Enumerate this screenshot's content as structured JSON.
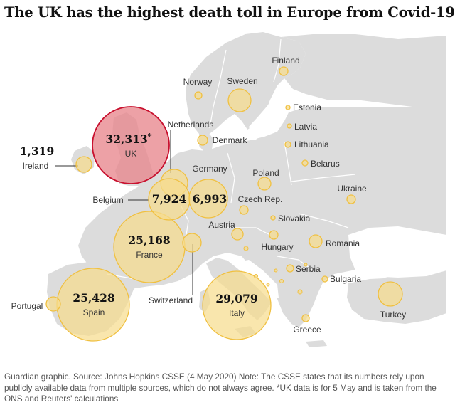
{
  "title": "The UK has the highest death toll in Europe from Covid-19",
  "footnote": "Guardian graphic. Source: Johns Hopkins CSSE (4 May 2020) Note: The CSSE states that its numbers rely upon publicly available data from multiple sources, which do not always agree. *UK data is for 5 May and is taken from the ONS and Reuters' calculations",
  "colors": {
    "land": "#dcdcdc",
    "bubble_fill": "#f6dd8e",
    "bubble_stroke": "#f0c040",
    "uk_fill": "#e8868d",
    "uk_stroke": "#c8102e"
  },
  "uk_asterisk": "*",
  "countries": [
    {
      "key": "uk",
      "name": "UK",
      "value": "32,313"
    },
    {
      "key": "ireland",
      "name": "Ireland",
      "value": "1,319"
    },
    {
      "key": "belgium",
      "name": "Belgium",
      "value": "7,924"
    },
    {
      "key": "germany",
      "name": "Germany",
      "value": "6,993"
    },
    {
      "key": "france",
      "name": "France",
      "value": "25,168"
    },
    {
      "key": "spain",
      "name": "Spain",
      "value": "25,428"
    },
    {
      "key": "italy",
      "name": "Italy",
      "value": "29,079"
    },
    {
      "key": "netherlands",
      "name": "Netherlands"
    },
    {
      "key": "switzerland",
      "name": "Switzerland"
    },
    {
      "key": "portugal",
      "name": "Portugal"
    },
    {
      "key": "finland",
      "name": "Finland"
    },
    {
      "key": "norway",
      "name": "Norway"
    },
    {
      "key": "sweden",
      "name": "Sweden"
    },
    {
      "key": "denmark",
      "name": "Denmark"
    },
    {
      "key": "estonia",
      "name": "Estonia"
    },
    {
      "key": "latvia",
      "name": "Latvia"
    },
    {
      "key": "lithuania",
      "name": "Lithuania"
    },
    {
      "key": "belarus",
      "name": "Belarus"
    },
    {
      "key": "poland",
      "name": "Poland"
    },
    {
      "key": "ukraine",
      "name": "Ukraine"
    },
    {
      "key": "czech",
      "name": "Czech Rep."
    },
    {
      "key": "slovakia",
      "name": "Slovakia"
    },
    {
      "key": "austria",
      "name": "Austria"
    },
    {
      "key": "hungary",
      "name": "Hungary"
    },
    {
      "key": "romania",
      "name": "Romania"
    },
    {
      "key": "serbia",
      "name": "Serbia"
    },
    {
      "key": "bulgaria",
      "name": "Bulgaria"
    },
    {
      "key": "greece",
      "name": "Greece"
    },
    {
      "key": "turkey",
      "name": "Turkey"
    }
  ]
}
